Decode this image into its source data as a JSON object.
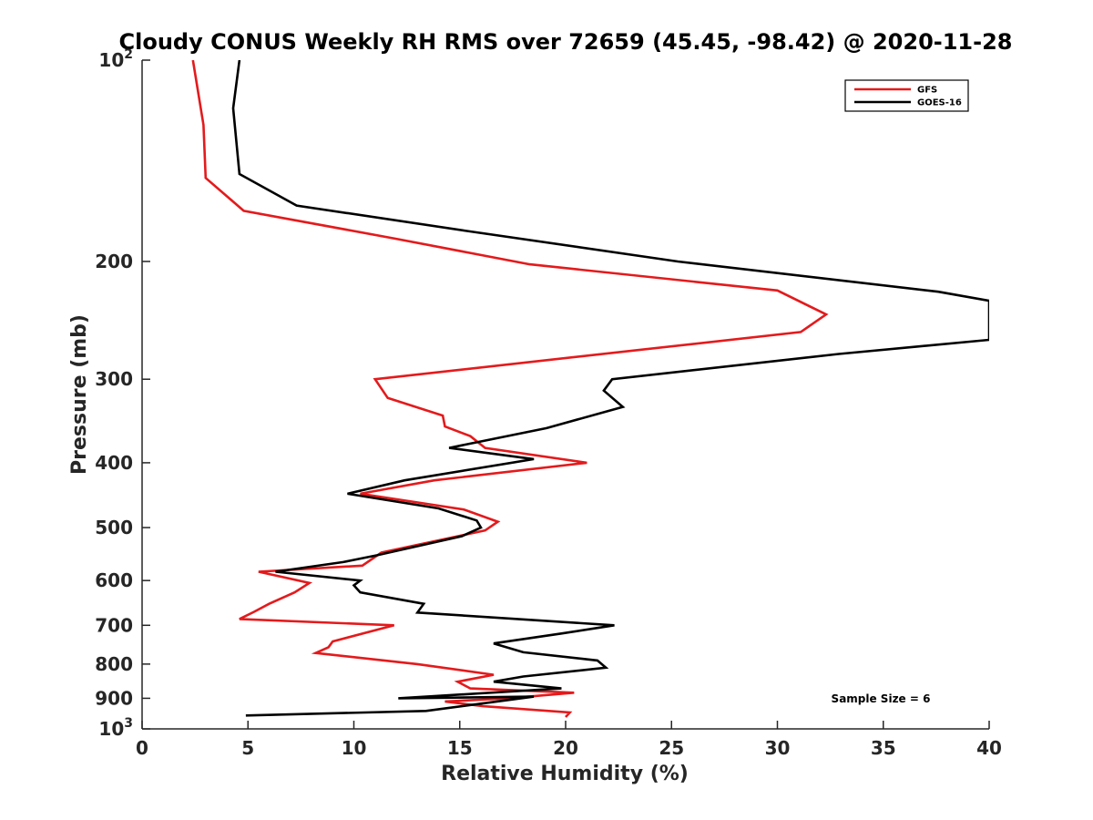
{
  "chart_data": {
    "type": "line",
    "title": "Cloudy CONUS Weekly RH RMS over 72659 (45.45, -98.42) @ 2020-11-28",
    "xlabel": "Relative Humidity (%)",
    "ylabel": "Pressure (mb)",
    "xlim": [
      0,
      40
    ],
    "ylim": [
      100,
      1000
    ],
    "y_scale": "log",
    "y_reversed": true,
    "grid": false,
    "legend_position": "top-right",
    "x_ticks": [
      0,
      5,
      10,
      15,
      20,
      25,
      30,
      35,
      40
    ],
    "y_ticks": [
      {
        "value": 100,
        "base": "10",
        "exp": "2"
      },
      {
        "value": 200,
        "label": "200"
      },
      {
        "value": 300,
        "label": "300"
      },
      {
        "value": 400,
        "label": "400"
      },
      {
        "value": 500,
        "label": "500"
      },
      {
        "value": 600,
        "label": "600"
      },
      {
        "value": 700,
        "label": "700"
      },
      {
        "value": 800,
        "label": "800"
      },
      {
        "value": 900,
        "label": "900"
      },
      {
        "value": 1000,
        "base": "10",
        "exp": "3"
      }
    ],
    "series": [
      {
        "name": "GFS",
        "color": "#e41a1c",
        "points": [
          [
            2.4,
            100
          ],
          [
            2.9,
            125
          ],
          [
            3.0,
            150
          ],
          [
            4.8,
            168
          ],
          [
            12.0,
            185
          ],
          [
            18.3,
            202
          ],
          [
            30.0,
            221
          ],
          [
            32.3,
            240
          ],
          [
            31.1,
            255
          ],
          [
            11.0,
            300
          ],
          [
            11.6,
            320
          ],
          [
            14.2,
            340
          ],
          [
            14.3,
            353
          ],
          [
            15.5,
            365
          ],
          [
            16.2,
            380
          ],
          [
            21.0,
            400
          ],
          [
            13.8,
            425
          ],
          [
            10.3,
            445
          ],
          [
            15.2,
            470
          ],
          [
            16.8,
            490
          ],
          [
            16.2,
            505
          ],
          [
            11.3,
            545
          ],
          [
            10.4,
            570
          ],
          [
            5.5,
            582
          ],
          [
            7.9,
            605
          ],
          [
            7.2,
            625
          ],
          [
            6.0,
            650
          ],
          [
            5.3,
            668
          ],
          [
            4.6,
            685
          ],
          [
            11.9,
            700
          ],
          [
            9.0,
            740
          ],
          [
            8.8,
            755
          ],
          [
            8.2,
            770
          ],
          [
            13.0,
            800
          ],
          [
            16.6,
            830
          ],
          [
            14.9,
            850
          ],
          [
            15.5,
            870
          ],
          [
            20.4,
            883
          ],
          [
            17.3,
            900
          ],
          [
            14.3,
            910
          ],
          [
            16.1,
            925
          ],
          [
            20.2,
            945
          ],
          [
            20.0,
            960
          ]
        ]
      },
      {
        "name": "GOES-16",
        "color": "#000000",
        "points": [
          [
            4.6,
            100
          ],
          [
            4.3,
            118
          ],
          [
            4.6,
            148
          ],
          [
            7.3,
            165
          ],
          [
            15.3,
            180
          ],
          [
            25.3,
            200
          ],
          [
            37.6,
            222
          ],
          [
            40.0,
            229
          ],
          [
            40.0,
            262
          ],
          [
            32.9,
            275
          ],
          [
            22.2,
            300
          ],
          [
            21.8,
            312
          ],
          [
            22.7,
            330
          ],
          [
            19.1,
            355
          ],
          [
            14.5,
            380
          ],
          [
            18.5,
            395
          ],
          [
            12.4,
            425
          ],
          [
            9.7,
            445
          ],
          [
            14.0,
            468
          ],
          [
            15.8,
            488
          ],
          [
            16.0,
            500
          ],
          [
            15.1,
            515
          ],
          [
            11.1,
            550
          ],
          [
            9.5,
            563
          ],
          [
            6.3,
            582
          ],
          [
            10.3,
            600
          ],
          [
            10.0,
            610
          ],
          [
            10.3,
            625
          ],
          [
            13.3,
            650
          ],
          [
            13.0,
            670
          ],
          [
            22.3,
            700
          ],
          [
            19.8,
            720
          ],
          [
            16.6,
            745
          ],
          [
            18.0,
            768
          ],
          [
            21.5,
            790
          ],
          [
            21.9,
            810
          ],
          [
            18.0,
            835
          ],
          [
            16.6,
            850
          ],
          [
            19.8,
            870
          ],
          [
            12.1,
            900
          ],
          [
            18.5,
            895
          ],
          [
            16.2,
            915
          ],
          [
            13.4,
            940
          ],
          [
            4.9,
            955
          ]
        ]
      }
    ],
    "annotation": "Sample Size = 6"
  }
}
